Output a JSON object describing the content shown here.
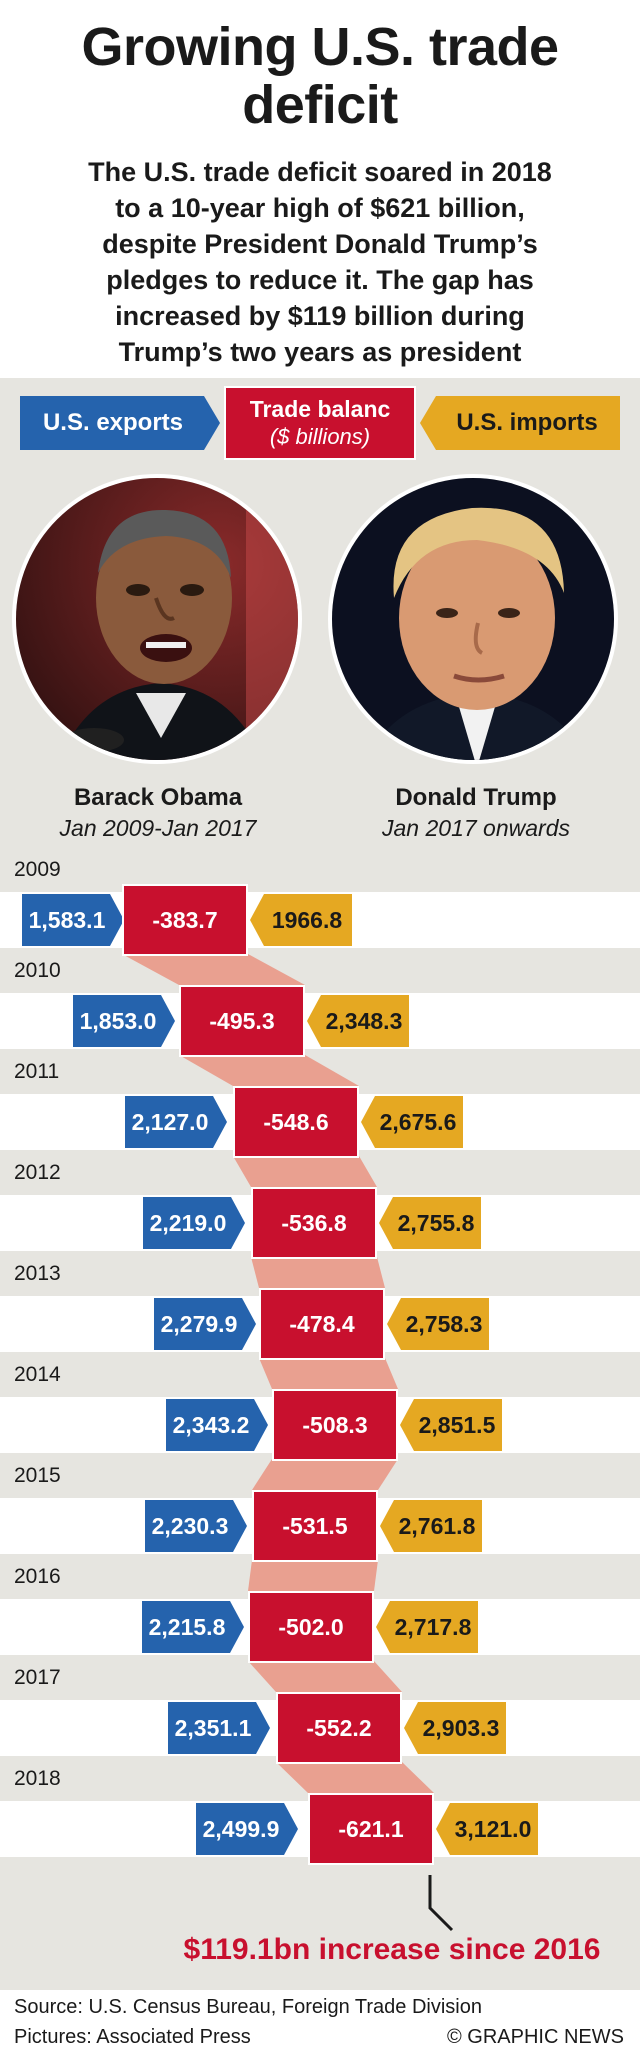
{
  "header": {
    "title_line1": "Growing U.S. trade",
    "title_line2": "deficit",
    "subtitle_lines": [
      "The U.S. trade deficit soared in 2018",
      "to a 10-year high of $621 billion,",
      "despite President Donald Trump’s",
      "pledges to reduce it. The gap has",
      "increased by $119 billion during",
      "Trump’s two years as president"
    ]
  },
  "legend": {
    "exports": "U.S. exports",
    "balance": "Trade balanc",
    "balance_unit": "($ billions)",
    "imports": "U.S. imports"
  },
  "presidents": [
    {
      "name": "Barack Obama",
      "term": "Jan 2009-Jan 2017",
      "picture": "obama-portrait"
    },
    {
      "name": "Donald Trump",
      "term": "Jan 2017 onwards",
      "picture": "trump-portrait"
    }
  ],
  "colors": {
    "exports": "#2563ad",
    "balance": "#c8102e",
    "imports": "#e5a822",
    "connector": "#e9a090",
    "panel": "#e6e5e0"
  },
  "chart_data": {
    "type": "table",
    "unit": "$ billions",
    "years": [
      "2009",
      "2010",
      "2011",
      "2012",
      "2013",
      "2014",
      "2015",
      "2016",
      "2017",
      "2018"
    ],
    "exports": [
      1583.1,
      1853.0,
      2127.0,
      2219.0,
      2279.9,
      2343.2,
      2230.3,
      2215.8,
      2351.1,
      2499.9
    ],
    "balance": [
      -383.7,
      -495.3,
      -548.6,
      -536.8,
      -478.4,
      -508.3,
      -531.5,
      -502.0,
      -552.2,
      -621.1
    ],
    "imports": [
      1966.8,
      2348.3,
      2675.6,
      2755.8,
      2758.3,
      2851.5,
      2761.8,
      2717.8,
      2903.3,
      3121.0
    ],
    "rows": [
      {
        "year": "2009",
        "exports": "1,583.1",
        "balance": "-383.7",
        "imports": "1966.8"
      },
      {
        "year": "2010",
        "exports": "1,853.0",
        "balance": "-495.3",
        "imports": "2,348.3"
      },
      {
        "year": "2011",
        "exports": "2,127.0",
        "balance": "-548.6",
        "imports": "2,675.6"
      },
      {
        "year": "2012",
        "exports": "2,219.0",
        "balance": "-536.8",
        "imports": "2,755.8"
      },
      {
        "year": "2013",
        "exports": "2,279.9",
        "balance": "-478.4",
        "imports": "2,758.3"
      },
      {
        "year": "2014",
        "exports": "2,343.2",
        "balance": "-508.3",
        "imports": "2,851.5"
      },
      {
        "year": "2015",
        "exports": "2,230.3",
        "balance": "-531.5",
        "imports": "2,761.8"
      },
      {
        "year": "2016",
        "exports": "2,215.8",
        "balance": "-502.0",
        "imports": "2,717.8"
      },
      {
        "year": "2017",
        "exports": "2,351.1",
        "balance": "-552.2",
        "imports": "2,903.3"
      },
      {
        "year": "2018",
        "exports": "2,499.9",
        "balance": "-621.1",
        "imports": "3,121.0"
      }
    ],
    "annotation": "$119.1bn increase since 2016"
  },
  "footer": {
    "source": "Source: U.S. Census Bureau, Foreign Trade Division",
    "pictures": "Pictures: Associated Press",
    "credit": "© GRAPHIC NEWS"
  }
}
